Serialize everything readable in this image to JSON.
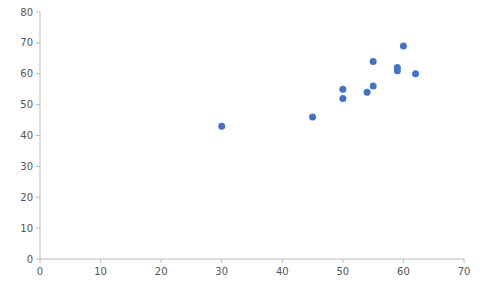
{
  "chart_data": {
    "type": "scatter",
    "x": [
      30,
      45,
      50,
      50,
      54,
      55,
      55,
      59,
      59,
      60,
      62
    ],
    "values": [
      43,
      46,
      52,
      55,
      54,
      56,
      64,
      61,
      62,
      69,
      60
    ],
    "color": "#4472C4",
    "xlim": [
      0,
      70
    ],
    "ylim": [
      0,
      80
    ],
    "xticks": [
      0,
      10,
      20,
      30,
      40,
      50,
      60,
      70
    ],
    "yticks": [
      0,
      10,
      20,
      30,
      40,
      50,
      60,
      70,
      80
    ],
    "grid": false
  }
}
